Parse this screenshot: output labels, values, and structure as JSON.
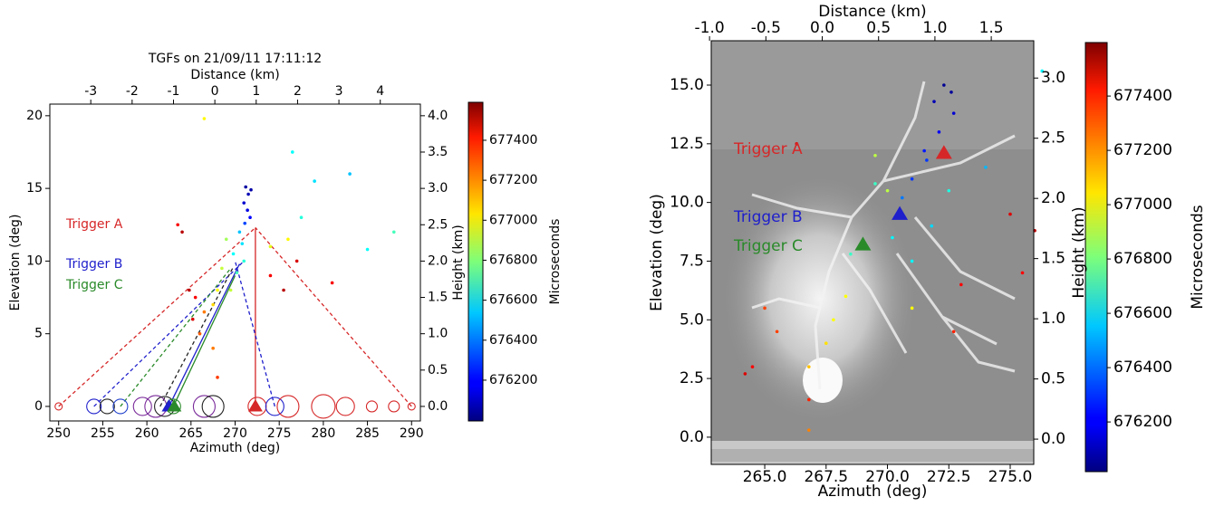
{
  "chart_data": [
    {
      "type": "scatter",
      "title": "TGFs on 21/09/11 17:11:12",
      "x2label": "Distance (km)",
      "xlabel": "Azimuth (deg)",
      "ylabel": "Elevation (deg)",
      "y2label": "Height (km)",
      "clabel": "Microseconds",
      "xlim": [
        249,
        291
      ],
      "xticks": [
        250,
        255,
        260,
        265,
        270,
        275,
        280,
        285,
        290
      ],
      "x2lim": [
        -3.99,
        4.97
      ],
      "x2ticks": [
        -3,
        -2,
        -1,
        0,
        1,
        2,
        3,
        4
      ],
      "ylim": [
        -1,
        20.8
      ],
      "yticks": [
        0,
        5,
        10,
        15,
        20
      ],
      "y2lim": [
        -0.2,
        4.16
      ],
      "y2ticks": [
        {
          "value": 0,
          "label": "0.0"
        },
        {
          "value": 0.5,
          "label": "0.5"
        },
        {
          "value": 1,
          "label": "1.0"
        },
        {
          "value": 1.5,
          "label": "1.5"
        },
        {
          "value": 2,
          "label": "2.0"
        },
        {
          "value": 2.5,
          "label": "2.5"
        },
        {
          "value": 3,
          "label": "3.0"
        },
        {
          "value": 3.5,
          "label": "3.5"
        },
        {
          "value": 4,
          "label": "4.0"
        }
      ],
      "clim": [
        675996,
        677590
      ],
      "cticks": [
        676200,
        676400,
        676600,
        676800,
        677000,
        677200,
        677400
      ],
      "points": {
        "x": [
          271.2,
          271.5,
          271.0,
          271.4,
          271.7,
          271.1,
          271.8,
          270.5,
          270.8,
          269.8,
          271.0,
          270.2,
          276.5,
          279,
          283,
          277.5,
          285,
          288,
          269.0,
          268.5,
          268.0,
          267.5,
          269.5,
          266.5,
          274,
          276,
          266.5,
          266,
          265.5,
          265.2,
          264.8,
          267.5,
          268,
          263.5,
          264,
          274,
          275.5,
          277,
          281
        ],
        "y": [
          15.1,
          14.6,
          14.0,
          13.5,
          13.0,
          12.6,
          14.9,
          12,
          11.2,
          10.5,
          10.0,
          9.2,
          17.5,
          15.5,
          16,
          13,
          10.8,
          12,
          11.5,
          9.5,
          8.0,
          7,
          8,
          19.8,
          11,
          11.5,
          6.5,
          5,
          7.5,
          6,
          8,
          4,
          2,
          12.5,
          12,
          9,
          8,
          10,
          8.5
        ],
        "c": [
          676050,
          676080,
          676120,
          676150,
          676200,
          676300,
          676060,
          676500,
          676550,
          676600,
          676650,
          676700,
          676600,
          676550,
          676500,
          676650,
          676600,
          676700,
          676850,
          676900,
          677000,
          677050,
          676900,
          677000,
          676950,
          677000,
          677200,
          677250,
          677400,
          677450,
          677500,
          677200,
          677300,
          677400,
          677500,
          677400,
          677500,
          677450,
          677400
        ]
      },
      "detectors": {
        "x": [
          250,
          254,
          255.5,
          257,
          259.5,
          261,
          262,
          263,
          266.5,
          267.5,
          272.5,
          274.5,
          276,
          280,
          282.5,
          285.5,
          288,
          290
        ],
        "sizes": [
          4,
          8,
          8,
          8,
          10,
          12,
          11,
          8,
          12,
          12,
          10,
          10,
          12,
          13,
          10,
          6,
          6,
          4
        ],
        "colors": [
          "#d62728",
          "#1f1fcc",
          "#222",
          "#1f3fcc",
          "#7a2a9a",
          "#7a2a9a",
          "#222",
          "#2a8a2a",
          "#7a2a9a",
          "#222",
          "#d62728",
          "#1f1fcc",
          "#d62728",
          "#d62728",
          "#d62728",
          "#d62728",
          "#d62728",
          "#d62728"
        ]
      },
      "sight_lines": [
        {
          "x": [
            250,
            272.3
          ],
          "y": [
            0,
            12.3
          ],
          "color": "#d62728",
          "dash": true
        },
        {
          "x": [
            290,
            272.3
          ],
          "y": [
            0,
            12.3
          ],
          "color": "#d62728",
          "dash": true
        },
        {
          "x": [
            272.3,
            272.3
          ],
          "y": [
            0,
            12.3
          ],
          "color": "#d62728",
          "dash": false
        },
        {
          "x": [
            254,
            271
          ],
          "y": [
            0,
            10
          ],
          "color": "#1f1fcc",
          "dash": true
        },
        {
          "x": [
            274.5,
            270
          ],
          "y": [
            0,
            10
          ],
          "color": "#1f1fcc",
          "dash": true
        },
        {
          "x": [
            262.5,
            270.5
          ],
          "y": [
            0,
            9.8
          ],
          "color": "#1f1fcc",
          "dash": false
        },
        {
          "x": [
            257,
            269.5
          ],
          "y": [
            0,
            9.5
          ],
          "color": "#2a8a2a",
          "dash": true
        },
        {
          "x": [
            263,
            270
          ],
          "y": [
            0,
            9
          ],
          "color": "#2a8a2a",
          "dash": false
        },
        {
          "x": [
            261.5,
            269.8
          ],
          "y": [
            0,
            9.6
          ],
          "color": "#222",
          "dash": true
        }
      ],
      "triggers": [
        {
          "label": "Trigger A",
          "color": "#d62728",
          "x": 272.3,
          "y": 0
        },
        {
          "label": "Trigger B",
          "color": "#1f1fcc",
          "x": 262.5,
          "y": 0
        },
        {
          "label": "Trigger C",
          "color": "#2a8a2a",
          "x": 263.1,
          "y": 0
        }
      ]
    },
    {
      "type": "scatter",
      "x2label": "Distance (km)",
      "xlabel": "Azimuth (deg)",
      "ylabel": "Elevation (deg)",
      "y2label": "Height (km)",
      "clabel": "Microseconds",
      "xlim": [
        262.82,
        275.96
      ],
      "xticks": [
        {
          "value": 265,
          "label": "265.0"
        },
        {
          "value": 267.5,
          "label": "267.5"
        },
        {
          "value": 270,
          "label": "270.0"
        },
        {
          "value": 272.5,
          "label": "272.5"
        },
        {
          "value": 275,
          "label": "275.0"
        }
      ],
      "x2lim": [
        -0.985,
        1.877
      ],
      "x2ticks": [
        {
          "value": -1,
          "label": "-1.0"
        },
        {
          "value": -0.5,
          "label": "-0.5"
        },
        {
          "value": 0,
          "label": "0.0"
        },
        {
          "value": 0.5,
          "label": "0.5"
        },
        {
          "value": 1,
          "label": "1.0"
        },
        {
          "value": 1.5,
          "label": "1.5"
        }
      ],
      "ylim": [
        -1.16,
        16.89
      ],
      "yticks": [
        {
          "value": 0,
          "label": "0.0"
        },
        {
          "value": 2.5,
          "label": "2.5"
        },
        {
          "value": 5,
          "label": "5.0"
        },
        {
          "value": 7.5,
          "label": "7.5"
        },
        {
          "value": 10,
          "label": "10.0"
        },
        {
          "value": 12.5,
          "label": "12.5"
        },
        {
          "value": 15,
          "label": "15.0"
        }
      ],
      "y2lim": [
        -0.21,
        3.31
      ],
      "y2ticks": [
        {
          "value": 0,
          "label": "0.0"
        },
        {
          "value": 0.5,
          "label": "0.5"
        },
        {
          "value": 1,
          "label": "1.0"
        },
        {
          "value": 1.5,
          "label": "1.5"
        },
        {
          "value": 2,
          "label": "2.0"
        },
        {
          "value": 2.5,
          "label": "2.5"
        },
        {
          "value": 3,
          "label": "3.0"
        }
      ],
      "clim": [
        676017,
        677597
      ],
      "cticks": [
        676200,
        676400,
        676600,
        676800,
        677000,
        677200,
        677400
      ],
      "points": {
        "x": [
          272.3,
          272.6,
          271.9,
          272.7,
          272.1,
          271.5,
          271.0,
          270.6,
          271.6,
          271.8,
          270.2,
          272.5,
          269.5,
          271.0,
          268.5,
          276.3,
          274,
          269.5,
          268.3,
          267.8,
          267.5,
          270,
          266.8,
          271,
          265,
          264.5,
          264.2,
          265.5,
          266.3,
          266.8,
          266.8,
          273,
          272.7,
          275,
          276,
          275.5
        ],
        "y": [
          15.0,
          14.7,
          14.3,
          13.8,
          13.0,
          12.2,
          11.0,
          10.2,
          11.8,
          9,
          8.5,
          10.5,
          10.8,
          7.5,
          7.8,
          15.6,
          11.5,
          12.0,
          6,
          5,
          4,
          10.5,
          3,
          5.5,
          5.5,
          3,
          2.7,
          4.5,
          12.5,
          0.3,
          1.6,
          6.5,
          4.5,
          9.5,
          8.8,
          7
        ],
        "c": [
          676050,
          676060,
          676100,
          676150,
          676200,
          676250,
          676300,
          676400,
          676300,
          676550,
          676600,
          676650,
          676700,
          676600,
          676700,
          676600,
          676500,
          676900,
          677000,
          677000,
          677050,
          676900,
          677100,
          677000,
          677300,
          677400,
          677450,
          677300,
          677450,
          677200,
          677350,
          677400,
          677350,
          677450,
          677500,
          677400
        ]
      },
      "triggers": [
        {
          "label": "Trigger A",
          "color": "#d62728",
          "x": 272.3,
          "y": 12.1
        },
        {
          "label": "Trigger B",
          "color": "#1f1fcc",
          "x": 270.5,
          "y": 9.5
        },
        {
          "label": "Trigger C",
          "color": "#2a8a2a",
          "x": 269.0,
          "y": 8.2
        }
      ]
    }
  ]
}
